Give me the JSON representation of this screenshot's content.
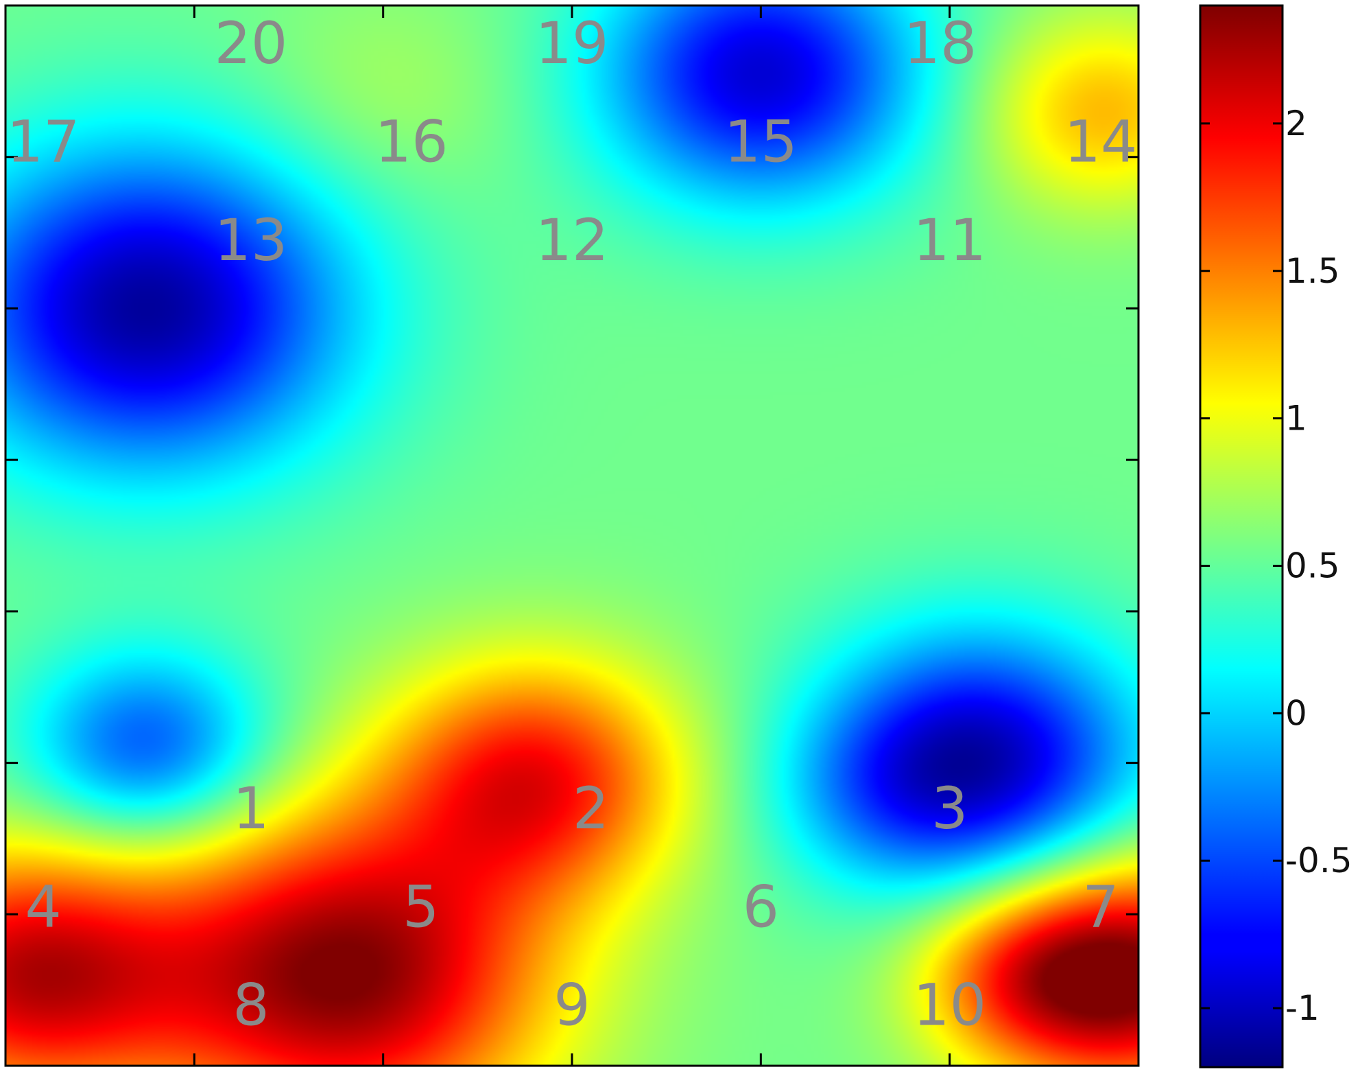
{
  "chart_data": {
    "type": "heatmap",
    "colormap": "jet",
    "grid": false,
    "colorbar": {
      "position": "right",
      "range": [
        -1.2,
        2.4
      ],
      "ticks": [
        {
          "value": 2,
          "label": "2"
        },
        {
          "value": 1.5,
          "label": "1.5"
        },
        {
          "value": 1,
          "label": "1"
        },
        {
          "value": 0.5,
          "label": "0.5"
        },
        {
          "value": 0,
          "label": "0"
        },
        {
          "value": -0.5,
          "label": "-0.5"
        },
        {
          "value": -1,
          "label": "-1"
        }
      ]
    },
    "x_axis": {
      "range": [
        0,
        6
      ],
      "ticks": [
        1,
        2,
        3,
        4,
        5
      ],
      "tick_labels": []
    },
    "y_axis": {
      "range": [
        0,
        7
      ],
      "ticks": [
        1,
        2,
        3,
        4,
        5,
        6
      ],
      "tick_labels": []
    },
    "points": [
      {
        "label": "1",
        "x": 1.3,
        "y": 1.7
      },
      {
        "label": "2",
        "x": 3.1,
        "y": 1.7
      },
      {
        "label": "3",
        "x": 5.0,
        "y": 1.7
      },
      {
        "label": "4",
        "x": 0.2,
        "y": 1.05
      },
      {
        "label": "5",
        "x": 2.2,
        "y": 1.05
      },
      {
        "label": "6",
        "x": 4.0,
        "y": 1.05
      },
      {
        "label": "7",
        "x": 5.8,
        "y": 1.05
      },
      {
        "label": "8",
        "x": 1.3,
        "y": 0.4
      },
      {
        "label": "9",
        "x": 3.0,
        "y": 0.4
      },
      {
        "label": "10",
        "x": 5.0,
        "y": 0.4
      },
      {
        "label": "11",
        "x": 5.0,
        "y": 5.45
      },
      {
        "label": "12",
        "x": 3.0,
        "y": 5.45
      },
      {
        "label": "13",
        "x": 1.3,
        "y": 5.45
      },
      {
        "label": "14",
        "x": 5.8,
        "y": 6.1
      },
      {
        "label": "15",
        "x": 4.0,
        "y": 6.1
      },
      {
        "label": "16",
        "x": 2.15,
        "y": 6.1
      },
      {
        "label": "17",
        "x": 0.2,
        "y": 6.1
      },
      {
        "label": "18",
        "x": 4.95,
        "y": 6.75
      },
      {
        "label": "19",
        "x": 3.0,
        "y": 6.75
      },
      {
        "label": "20",
        "x": 1.3,
        "y": 6.75
      }
    ],
    "field_features": [
      {
        "x": 0.75,
        "y": 5.0,
        "value": -1.1,
        "spread": 0.75
      },
      {
        "x": 4.0,
        "y": 6.55,
        "value": -0.9,
        "spread": 0.6
      },
      {
        "x": 5.15,
        "y": 2.0,
        "value": -1.05,
        "spread": 0.6
      },
      {
        "x": 0.75,
        "y": 2.1,
        "value": -0.5,
        "spread": 0.45
      },
      {
        "x": 1.8,
        "y": 0.6,
        "value": 2.4,
        "spread": 0.75
      },
      {
        "x": 2.8,
        "y": 1.9,
        "value": 1.9,
        "spread": 0.55
      },
      {
        "x": 0.1,
        "y": 0.6,
        "value": 2.1,
        "spread": 0.6
      },
      {
        "x": 5.95,
        "y": 0.6,
        "value": 2.4,
        "spread": 0.55
      },
      {
        "x": 5.35,
        "y": 0.6,
        "value": 1.2,
        "spread": 0.4
      },
      {
        "x": 5.8,
        "y": 6.3,
        "value": 1.3,
        "spread": 0.45
      },
      {
        "x": 2.0,
        "y": 6.4,
        "value": 0.75,
        "spread": 0.5
      },
      {
        "x": 4.6,
        "y": 1.8,
        "value": 0.3,
        "spread": 0.4
      }
    ],
    "baseline": 0.55
  }
}
